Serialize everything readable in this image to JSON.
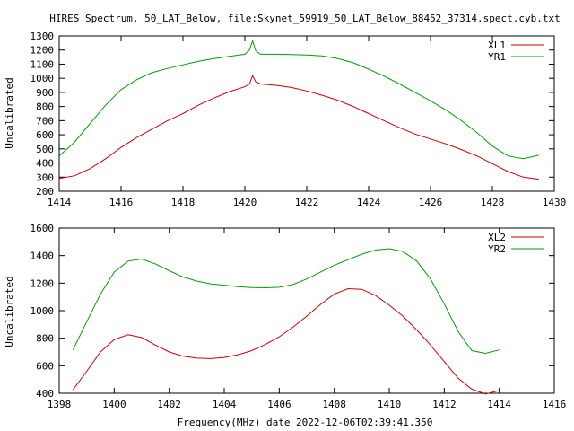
{
  "chart_data": {
    "title": "HIRES Spectrum, 50_LAT_Below, file:Skynet_59919_50_LAT_Below_88452_37314.spect.cyb.txt",
    "xlabel": "Frequency(MHz) date 2022-12-06T02:39:41.350",
    "panels": [
      {
        "type": "line",
        "xlabel": "",
        "ylabel": "Uncalibrated",
        "xlim": [
          1414,
          1430
        ],
        "ylim": [
          200,
          1300
        ],
        "xticks": [
          1414,
          1416,
          1418,
          1420,
          1422,
          1424,
          1426,
          1428,
          1430
        ],
        "yticks": [
          200,
          300,
          400,
          500,
          600,
          700,
          800,
          900,
          1000,
          1100,
          1200,
          1300
        ],
        "legend": "top-right",
        "grid": false,
        "series": [
          {
            "name": "XL1",
            "color": "#d00000",
            "x": [
              1414.0,
              1414.5,
              1415.0,
              1415.5,
              1416.0,
              1416.5,
              1417.0,
              1417.5,
              1418.0,
              1418.5,
              1419.0,
              1419.5,
              1420.0,
              1420.15,
              1420.25,
              1420.35,
              1420.5,
              1421.0,
              1421.5,
              1422.0,
              1422.5,
              1423.0,
              1423.5,
              1424.0,
              1424.5,
              1425.0,
              1425.5,
              1426.0,
              1426.5,
              1427.0,
              1427.5,
              1428.0,
              1428.5,
              1429.0,
              1429.5
            ],
            "y": [
              290,
              310,
              360,
              430,
              510,
              580,
              640,
              700,
              750,
              810,
              860,
              905,
              940,
              960,
              1020,
              975,
              960,
              950,
              935,
              910,
              880,
              845,
              800,
              750,
              700,
              650,
              605,
              570,
              535,
              495,
              450,
              395,
              340,
              300,
              285
            ]
          },
          {
            "name": "YR1",
            "color": "#00a000",
            "x": [
              1414.0,
              1414.5,
              1415.0,
              1415.5,
              1416.0,
              1416.5,
              1417.0,
              1417.5,
              1418.0,
              1418.5,
              1419.0,
              1419.5,
              1420.0,
              1420.15,
              1420.25,
              1420.35,
              1420.5,
              1421.0,
              1421.5,
              1422.0,
              1422.5,
              1423.0,
              1423.5,
              1424.0,
              1424.5,
              1425.0,
              1425.5,
              1426.0,
              1426.5,
              1427.0,
              1427.5,
              1428.0,
              1428.5,
              1429.0,
              1429.5
            ],
            "y": [
              450,
              550,
              680,
              810,
              920,
              990,
              1040,
              1070,
              1095,
              1120,
              1140,
              1155,
              1170,
              1200,
              1265,
              1195,
              1170,
              1170,
              1168,
              1165,
              1158,
              1140,
              1110,
              1065,
              1015,
              960,
              900,
              840,
              775,
              700,
              615,
              520,
              450,
              430,
              455
            ]
          }
        ]
      },
      {
        "type": "line",
        "xlabel": "",
        "ylabel": "Uncalibrated",
        "xlim": [
          1398,
          1416
        ],
        "ylim": [
          400,
          1600
        ],
        "xticks": [
          1398,
          1400,
          1402,
          1404,
          1406,
          1408,
          1410,
          1412,
          1414,
          1416
        ],
        "yticks": [
          400,
          600,
          800,
          1000,
          1200,
          1400,
          1600
        ],
        "legend": "top-right",
        "grid": false,
        "series": [
          {
            "name": "XL2",
            "color": "#d00000",
            "x": [
              1398.5,
              1399.0,
              1399.5,
              1400.0,
              1400.5,
              1401.0,
              1401.5,
              1402.0,
              1402.5,
              1403.0,
              1403.5,
              1404.0,
              1404.5,
              1405.0,
              1405.5,
              1406.0,
              1406.5,
              1407.0,
              1407.5,
              1408.0,
              1408.5,
              1409.0,
              1409.5,
              1410.0,
              1410.5,
              1411.0,
              1411.5,
              1412.0,
              1412.5,
              1413.0,
              1413.5,
              1414.0
            ],
            "y": [
              425,
              560,
              700,
              790,
              825,
              805,
              750,
              700,
              670,
              655,
              652,
              660,
              680,
              710,
              755,
              810,
              880,
              960,
              1045,
              1120,
              1160,
              1155,
              1110,
              1040,
              960,
              860,
              750,
              630,
              510,
              430,
              395,
              420
            ]
          },
          {
            "name": "YR2",
            "color": "#00a000",
            "x": [
              1398.5,
              1399.0,
              1399.5,
              1400.0,
              1400.5,
              1401.0,
              1401.5,
              1402.0,
              1402.5,
              1403.0,
              1403.5,
              1404.0,
              1404.5,
              1405.0,
              1405.5,
              1406.0,
              1406.5,
              1407.0,
              1407.5,
              1408.0,
              1408.5,
              1409.0,
              1409.5,
              1410.0,
              1410.5,
              1411.0,
              1411.5,
              1412.0,
              1412.5,
              1413.0,
              1413.5,
              1414.0
            ],
            "y": [
              715,
              920,
              1120,
              1280,
              1360,
              1375,
              1340,
              1290,
              1245,
              1215,
              1195,
              1185,
              1175,
              1168,
              1166,
              1170,
              1190,
              1230,
              1280,
              1330,
              1370,
              1410,
              1440,
              1450,
              1430,
              1360,
              1230,
              1050,
              850,
              710,
              690,
              715
            ]
          }
        ]
      }
    ]
  }
}
